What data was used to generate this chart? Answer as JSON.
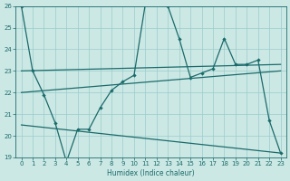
{
  "xlabel": "Humidex (Indice chaleur)",
  "xlim": [
    -0.5,
    23.5
  ],
  "ylim": [
    19,
    26
  ],
  "xticks": [
    0,
    1,
    2,
    3,
    4,
    5,
    6,
    7,
    8,
    9,
    10,
    11,
    12,
    13,
    14,
    15,
    16,
    17,
    18,
    19,
    20,
    21,
    22,
    23
  ],
  "yticks": [
    19,
    20,
    21,
    22,
    23,
    24,
    25,
    26
  ],
  "bg_color": "#cce8e4",
  "line_color": "#1a6b6b",
  "grid_color": "#99cccc",
  "main_x": [
    0,
    1,
    2,
    3,
    4,
    5,
    6,
    7,
    8,
    9,
    10,
    11,
    12,
    13,
    14,
    15,
    16,
    17,
    18,
    19,
    20,
    21,
    22,
    23
  ],
  "main_y": [
    26,
    23,
    21.9,
    20.6,
    18.8,
    20.3,
    20.3,
    21.3,
    22.1,
    22.5,
    22.8,
    26.1,
    26.1,
    26.0,
    24.5,
    22.7,
    22.9,
    23.1,
    24.5,
    23.3,
    23.3,
    23.5,
    20.7,
    19.2
  ],
  "trend1_x": [
    0,
    23
  ],
  "trend1_y": [
    23.0,
    23.3
  ],
  "trend2_x": [
    0,
    23
  ],
  "trend2_y": [
    22.0,
    23.0
  ],
  "trend3_x": [
    0,
    23
  ],
  "trend3_y": [
    20.5,
    19.2
  ]
}
